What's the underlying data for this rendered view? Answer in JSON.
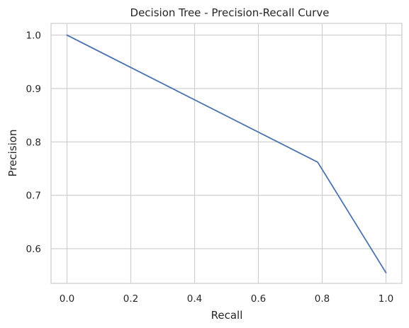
{
  "chart_data": {
    "type": "line",
    "title": "Decision Tree - Precision-Recall Curve",
    "xlabel": "Recall",
    "ylabel": "Precision",
    "xlim": [
      -0.05,
      1.05
    ],
    "ylim": [
      0.535,
      1.022
    ],
    "x_ticks": [
      {
        "value": 0.0,
        "label": "0.0"
      },
      {
        "value": 0.2,
        "label": "0.2"
      },
      {
        "value": 0.4,
        "label": "0.4"
      },
      {
        "value": 0.6,
        "label": "0.6"
      },
      {
        "value": 0.8,
        "label": "0.8"
      },
      {
        "value": 1.0,
        "label": "1.0"
      }
    ],
    "y_ticks": [
      {
        "value": 0.6,
        "label": "0.6"
      },
      {
        "value": 0.7,
        "label": "0.7"
      },
      {
        "value": 0.8,
        "label": "0.8"
      },
      {
        "value": 0.9,
        "label": "0.9"
      },
      {
        "value": 1.0,
        "label": "1.0"
      }
    ],
    "grid": true,
    "series": [
      {
        "color": "#4c72b0",
        "points": [
          {
            "x": 0.0,
            "y": 1.0
          },
          {
            "x": 0.786,
            "y": 0.762
          },
          {
            "x": 1.0,
            "y": 0.555
          }
        ]
      }
    ]
  }
}
